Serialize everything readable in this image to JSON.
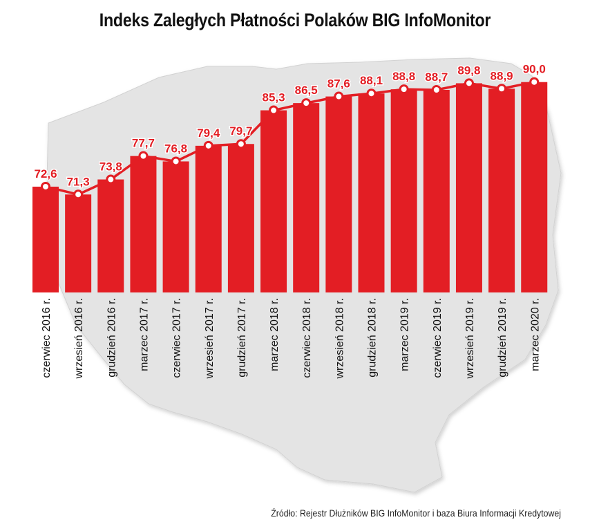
{
  "chart_data": {
    "type": "bar",
    "title": "Indeks Zaległych Płatności Polaków BIG InfoMonitor",
    "categories": [
      "czerwiec 2016 r.",
      "wrzesień 2016 r.",
      "grudzień 2016 r.",
      "marzec 2017 r.",
      "czerwiec 2017 r.",
      "wrzesień 2017 r.",
      "grudzień 2017 r.",
      "marzec 2018 r.",
      "czerwiec 2018 r.",
      "wrzesień 2018 r.",
      "grudzień 2018 r.",
      "marzec 2019 r.",
      "czerwiec 2019 r.",
      "wrzesień 2019 r.",
      "grudzień 2019 r.",
      "marzec 2020 r."
    ],
    "values": [
      72.6,
      71.3,
      73.8,
      77.7,
      76.8,
      79.4,
      79.7,
      85.3,
      86.5,
      87.6,
      88.1,
      88.8,
      88.7,
      89.8,
      88.9,
      90.0
    ],
    "value_labels": [
      "72,6",
      "71,3",
      "73,8",
      "77,7",
      "76,8",
      "79,4",
      "79,7",
      "85,3",
      "86,5",
      "87,6",
      "88,1",
      "88,8",
      "88,7",
      "89,8",
      "88,9",
      "90,0"
    ],
    "ylim": [
      55,
      91
    ],
    "grid": false,
    "legend": "none",
    "overlay": "line with markers",
    "colors": {
      "bar": "#e31e24",
      "line": "#e31e24",
      "marker_fill": "#ffffff",
      "map": "#e4e4e4"
    }
  },
  "source": "Źródło: Rejestr Dłużników BIG InfoMonitor i baza Biura Informacji Kredytowej"
}
